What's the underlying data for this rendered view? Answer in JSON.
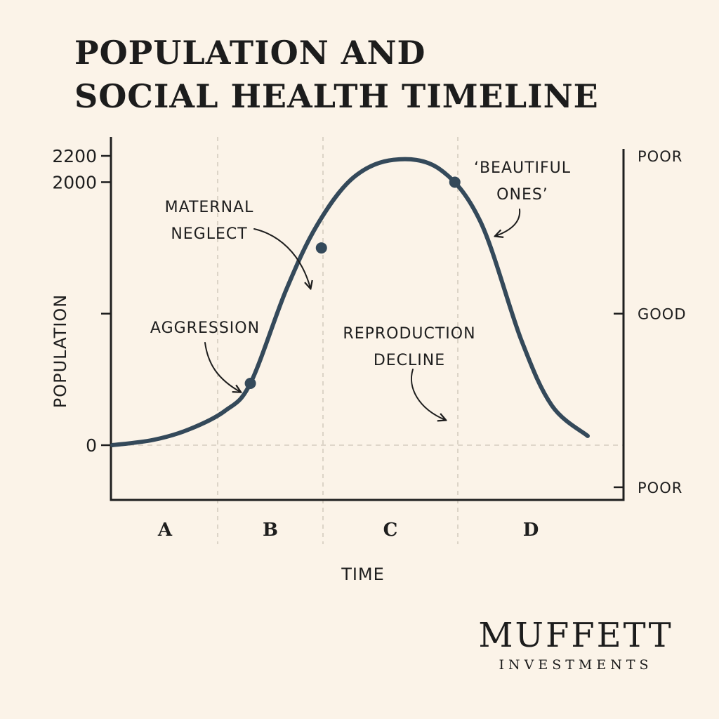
{
  "chart_data": {
    "type": "line",
    "title_lines": [
      "POPULATION AND",
      "SOCIAL HEALTH TIMELINE"
    ],
    "xlabel": "TIME",
    "ylabel": "POPULATION",
    "ylim": [
      0,
      2200
    ],
    "y_ticks": [
      {
        "value": 0,
        "label": "0"
      },
      {
        "value": 1000,
        "label": ""
      },
      {
        "value": 2000,
        "label": "2000"
      },
      {
        "value": 2200,
        "label": "2200"
      }
    ],
    "right_axis": {
      "labels": [
        {
          "value": 2200,
          "label": "POOR"
        },
        {
          "value": 1000,
          "label": "GOOD"
        },
        {
          "value": -320,
          "label": "POOR"
        }
      ]
    },
    "phases": [
      "A",
      "B",
      "C",
      "D"
    ],
    "series": [
      {
        "color": "#34495a",
        "points": [
          {
            "t": 0.0,
            "y": 0
          },
          {
            "t": 0.08,
            "y": 40
          },
          {
            "t": 0.15,
            "y": 120
          },
          {
            "t": 0.22,
            "y": 260
          },
          {
            "t": 0.27,
            "y": 470
          },
          {
            "t": 0.34,
            "y": 1180
          },
          {
            "t": 0.4,
            "y": 1670
          },
          {
            "t": 0.47,
            "y": 2030
          },
          {
            "t": 0.55,
            "y": 2170
          },
          {
            "t": 0.64,
            "y": 2100
          },
          {
            "t": 0.72,
            "y": 1700
          },
          {
            "t": 0.8,
            "y": 800
          },
          {
            "t": 0.86,
            "y": 300
          },
          {
            "t": 0.93,
            "y": 70
          }
        ]
      }
    ],
    "annotations": [
      {
        "lines": [
          "AGGRESSION"
        ],
        "t": 0.27,
        "y": 470
      },
      {
        "lines": [
          "MATERNAL",
          "NEGLECT"
        ],
        "t": 0.409,
        "y": 1500
      },
      {
        "lines": [
          "REPRODUCTION",
          "DECLINE"
        ],
        "t": 0.64,
        "y": 260
      },
      {
        "lines": [
          "‘BEAUTIFUL",
          "ONES’"
        ],
        "t": 0.67,
        "y": 2000
      }
    ]
  },
  "brand": {
    "name": "MUFFETT",
    "sub": "INVESTMENTS"
  }
}
